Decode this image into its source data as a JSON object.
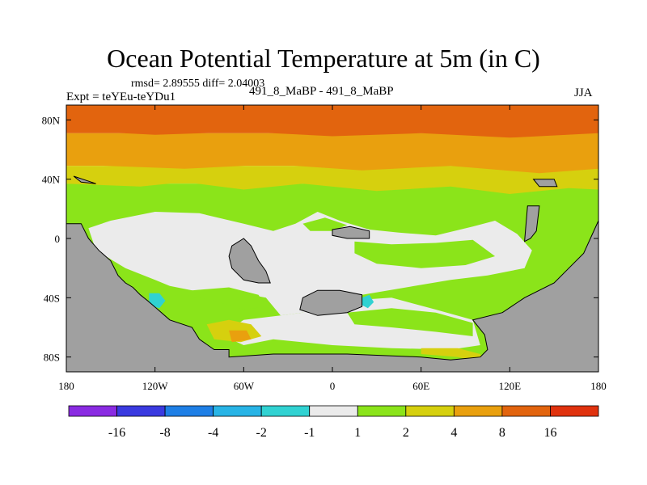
{
  "chart_data": {
    "type": "heatmap",
    "title": "Ocean Potential Temperature at 5m (in C)",
    "stats": "rmsd= 2.89555 diff= 2.04003",
    "left_label": "Expt = teYEu-teYDu1",
    "center_label": "491_8_MaBP - 491_8_MaBP",
    "right_label": "JJA",
    "xlim": [
      -180,
      180
    ],
    "ylim": [
      -90,
      90
    ],
    "x_ticks": [
      {
        "value": -180,
        "label": "180"
      },
      {
        "value": -120,
        "label": "120W"
      },
      {
        "value": -60,
        "label": "60W"
      },
      {
        "value": 0,
        "label": "0"
      },
      {
        "value": 60,
        "label": "60E"
      },
      {
        "value": 120,
        "label": "120E"
      },
      {
        "value": 180,
        "label": "180"
      }
    ],
    "y_ticks": [
      {
        "value": 80,
        "label": "80N"
      },
      {
        "value": 40,
        "label": "40N"
      },
      {
        "value": 0,
        "label": "0"
      },
      {
        "value": -40,
        "label": "40S"
      },
      {
        "value": -80,
        "label": "80S"
      }
    ],
    "colorbar": {
      "levels": [
        "-16",
        "-8",
        "-4",
        "-2",
        "-1",
        "1",
        "2",
        "4",
        "8",
        "16"
      ],
      "colors": [
        "#8a2be2",
        "#3a3ae0",
        "#1e7fe6",
        "#28b4e6",
        "#30d2d2",
        "#ebebeb",
        "#8be41a",
        "#d6d00e",
        "#e9a00e",
        "#e2640e",
        "#e0320e"
      ]
    },
    "land_color": "#a0a0a0"
  }
}
